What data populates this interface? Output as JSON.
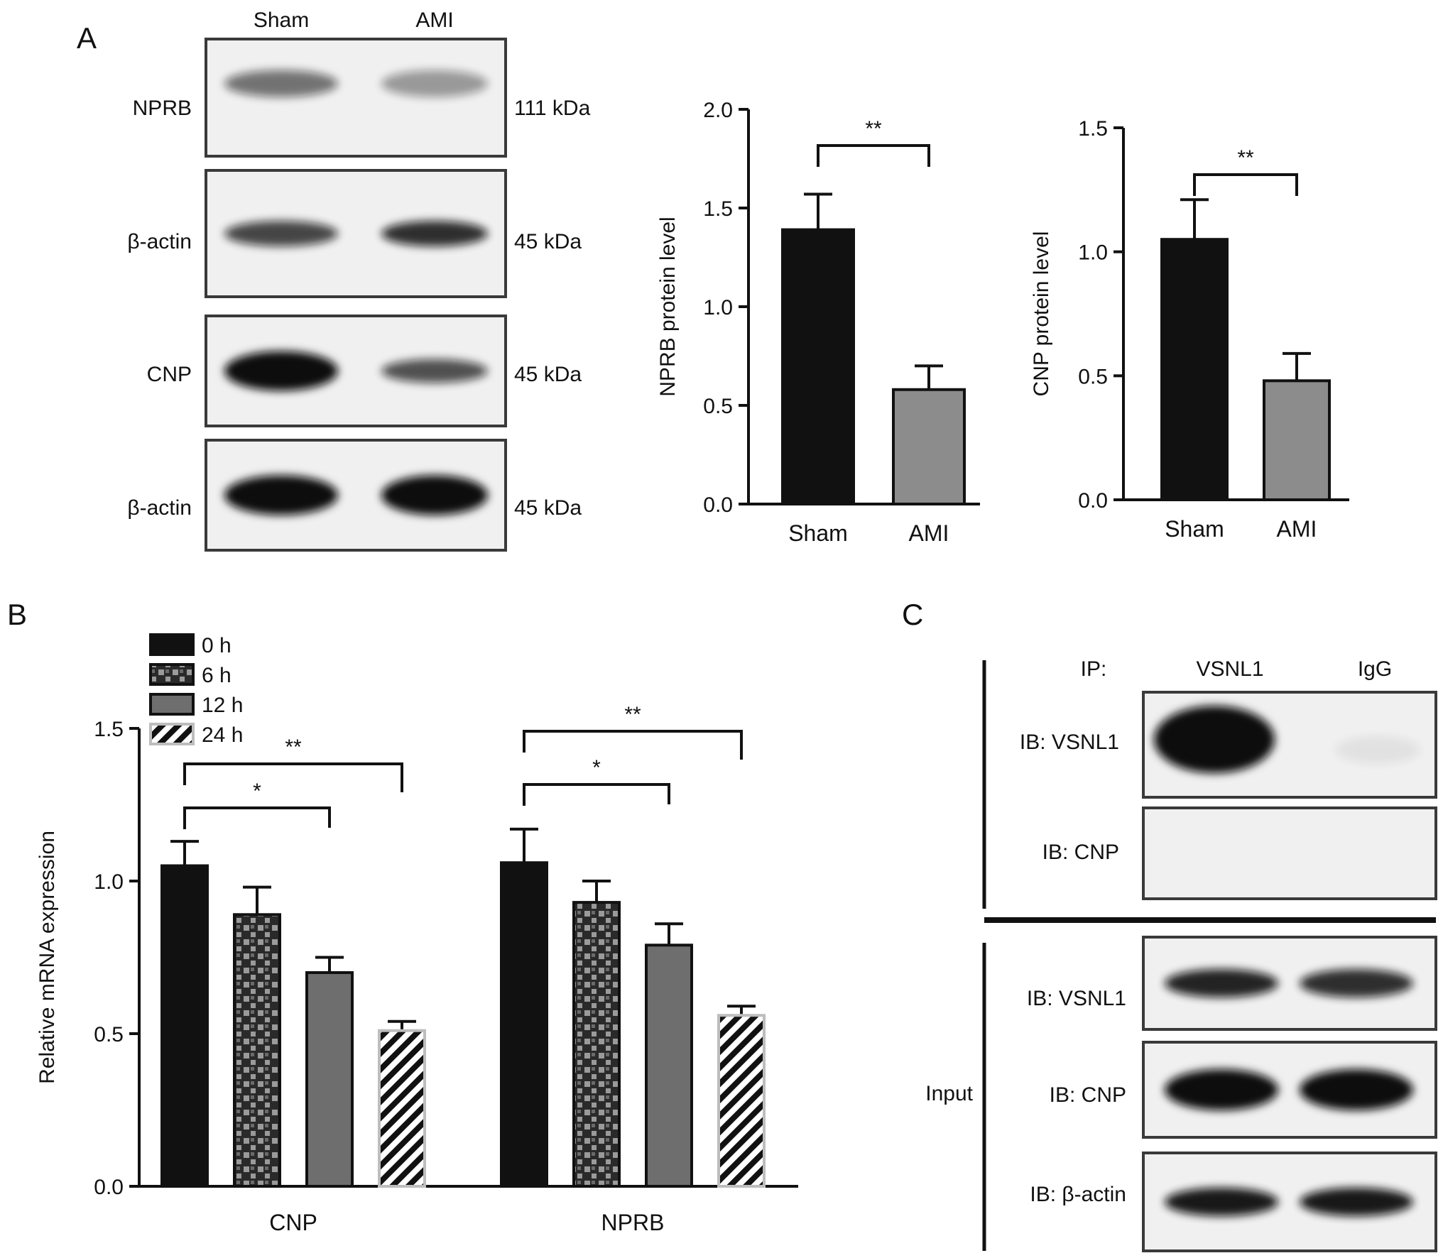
{
  "panel_labels": {
    "a": "A",
    "b": "B",
    "c": "C"
  },
  "panel_a_blot": {
    "lanes": [
      "Sham",
      "AMI"
    ],
    "rows": [
      {
        "label": "NPRB",
        "size": "111 kDa",
        "bands": [
          0.55,
          0.38
        ]
      },
      {
        "label": "β-actin",
        "size": "45 kDa",
        "bands": [
          0.75,
          0.85
        ]
      },
      {
        "label": "CNP",
        "size": "45 kDa",
        "bands": [
          1.0,
          0.7
        ]
      },
      {
        "label": "β-actin",
        "size": "45 kDa",
        "bands": [
          1.0,
          1.0
        ]
      }
    ]
  },
  "panel_c_blot": {
    "ip_label": "IP:",
    "lanes": [
      "VSNL1",
      "IgG"
    ],
    "ip_rows": [
      {
        "label": "IB: VSNL1",
        "bands": [
          1.0,
          0.06
        ]
      },
      {
        "label": "IB: CNP",
        "bands": [
          0.0,
          0.0
        ]
      }
    ],
    "input_label": "Input",
    "input_rows": [
      {
        "label": "IB: VSNL1",
        "bands": [
          0.9,
          0.85
        ]
      },
      {
        "label": "IB: CNP",
        "bands": [
          1.0,
          1.0
        ]
      },
      {
        "label": "IB: β-actin",
        "bands": [
          0.95,
          0.95
        ]
      }
    ]
  },
  "colors": {
    "black_bar": "#111111",
    "gray_bar": "#8c8c8c",
    "bar_12h": "#6e6e6e",
    "blot_bg": "#f0f0f0",
    "band": "#0b0b0b"
  },
  "chart_data": [
    {
      "type": "bar",
      "categories": [
        "Sham",
        "AMI"
      ],
      "values": [
        1.39,
        0.58
      ],
      "errors": [
        0.18,
        0.12
      ],
      "ylabel": "NPRB protein level",
      "ylim": [
        0,
        2.0
      ],
      "yticks": [
        "0.0",
        "0.5",
        "1.0",
        "1.5",
        "2.0"
      ],
      "significance": [
        {
          "from": 0,
          "to": 1,
          "label": "**"
        }
      ]
    },
    {
      "type": "bar",
      "categories": [
        "Sham",
        "AMI"
      ],
      "values": [
        1.05,
        0.48
      ],
      "errors": [
        0.16,
        0.11
      ],
      "ylabel": "CNP protein level",
      "ylim": [
        0,
        1.5
      ],
      "yticks": [
        "0.0",
        "0.5",
        "1.0",
        "1.5"
      ],
      "significance": [
        {
          "from": 0,
          "to": 1,
          "label": "**"
        }
      ]
    },
    {
      "type": "bar",
      "categories": [
        "CNP",
        "NPRB"
      ],
      "series": [
        {
          "name": "0 h",
          "values": [
            1.05,
            1.06
          ],
          "errors": [
            0.08,
            0.11
          ]
        },
        {
          "name": "6 h",
          "values": [
            0.89,
            0.93
          ],
          "errors": [
            0.09,
            0.07
          ]
        },
        {
          "name": "12 h",
          "values": [
            0.7,
            0.79
          ],
          "errors": [
            0.05,
            0.07
          ]
        },
        {
          "name": "24 h",
          "values": [
            0.51,
            0.56
          ],
          "errors": [
            0.03,
            0.03
          ]
        }
      ],
      "ylabel": "Relative mRNA expression",
      "ylim": [
        0,
        1.5
      ],
      "yticks": [
        "0.0",
        "0.5",
        "1.0",
        "1.5"
      ],
      "legend": "top-left",
      "significance": [
        {
          "group": 0,
          "from": 0,
          "to": 2,
          "label": "*"
        },
        {
          "group": 0,
          "from": 0,
          "to": 3,
          "label": "**"
        },
        {
          "group": 1,
          "from": 0,
          "to": 2,
          "label": "*"
        },
        {
          "group": 1,
          "from": 0,
          "to": 3,
          "label": "**"
        }
      ]
    }
  ]
}
